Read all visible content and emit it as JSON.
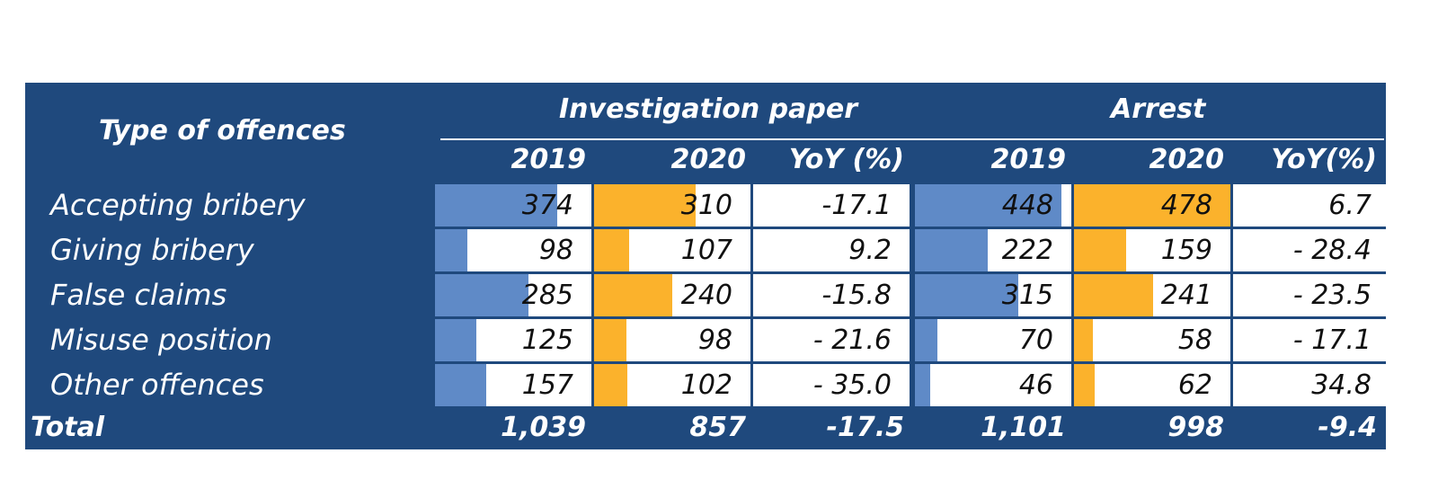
{
  "chart_data": {
    "type": "table",
    "row_header": "Type of offences",
    "groups": [
      {
        "name": "Investigation paper",
        "columns": [
          "2019",
          "2020",
          "YoY (%)"
        ]
      },
      {
        "name": "Arrest",
        "columns": [
          "2019",
          "2020",
          "YoY(%)"
        ]
      }
    ],
    "rows": [
      {
        "label": "Accepting bribery",
        "values": [
          "374",
          "310",
          "-17.1",
          "448",
          "478",
          "6.7"
        ]
      },
      {
        "label": "Giving bribery",
        "values": [
          "98",
          "107",
          "9.2",
          "222",
          "159",
          "- 28.4"
        ]
      },
      {
        "label": "False claims",
        "values": [
          "285",
          "240",
          "-15.8",
          "315",
          "241",
          "- 23.5"
        ]
      },
      {
        "label": "Misuse position",
        "values": [
          "125",
          "98",
          "- 21.6",
          "70",
          "58",
          "- 17.1"
        ]
      },
      {
        "label": "Other offences",
        "values": [
          "157",
          "102",
          "- 35.0",
          "46",
          "62",
          "34.8"
        ]
      }
    ],
    "total": {
      "label": "Total",
      "values": [
        "1,039",
        "857",
        "-17.5",
        "1,101",
        "998",
        "-9.4"
      ]
    },
    "data_bars": {
      "max": 478,
      "bar_columns": [
        0,
        1,
        3,
        4
      ]
    },
    "colors": {
      "header_bg": "#1f497d",
      "bar_2019": "#5f8ac7",
      "bar_2020": "#fbb22c",
      "cell_bg": "#ffffff"
    }
  }
}
